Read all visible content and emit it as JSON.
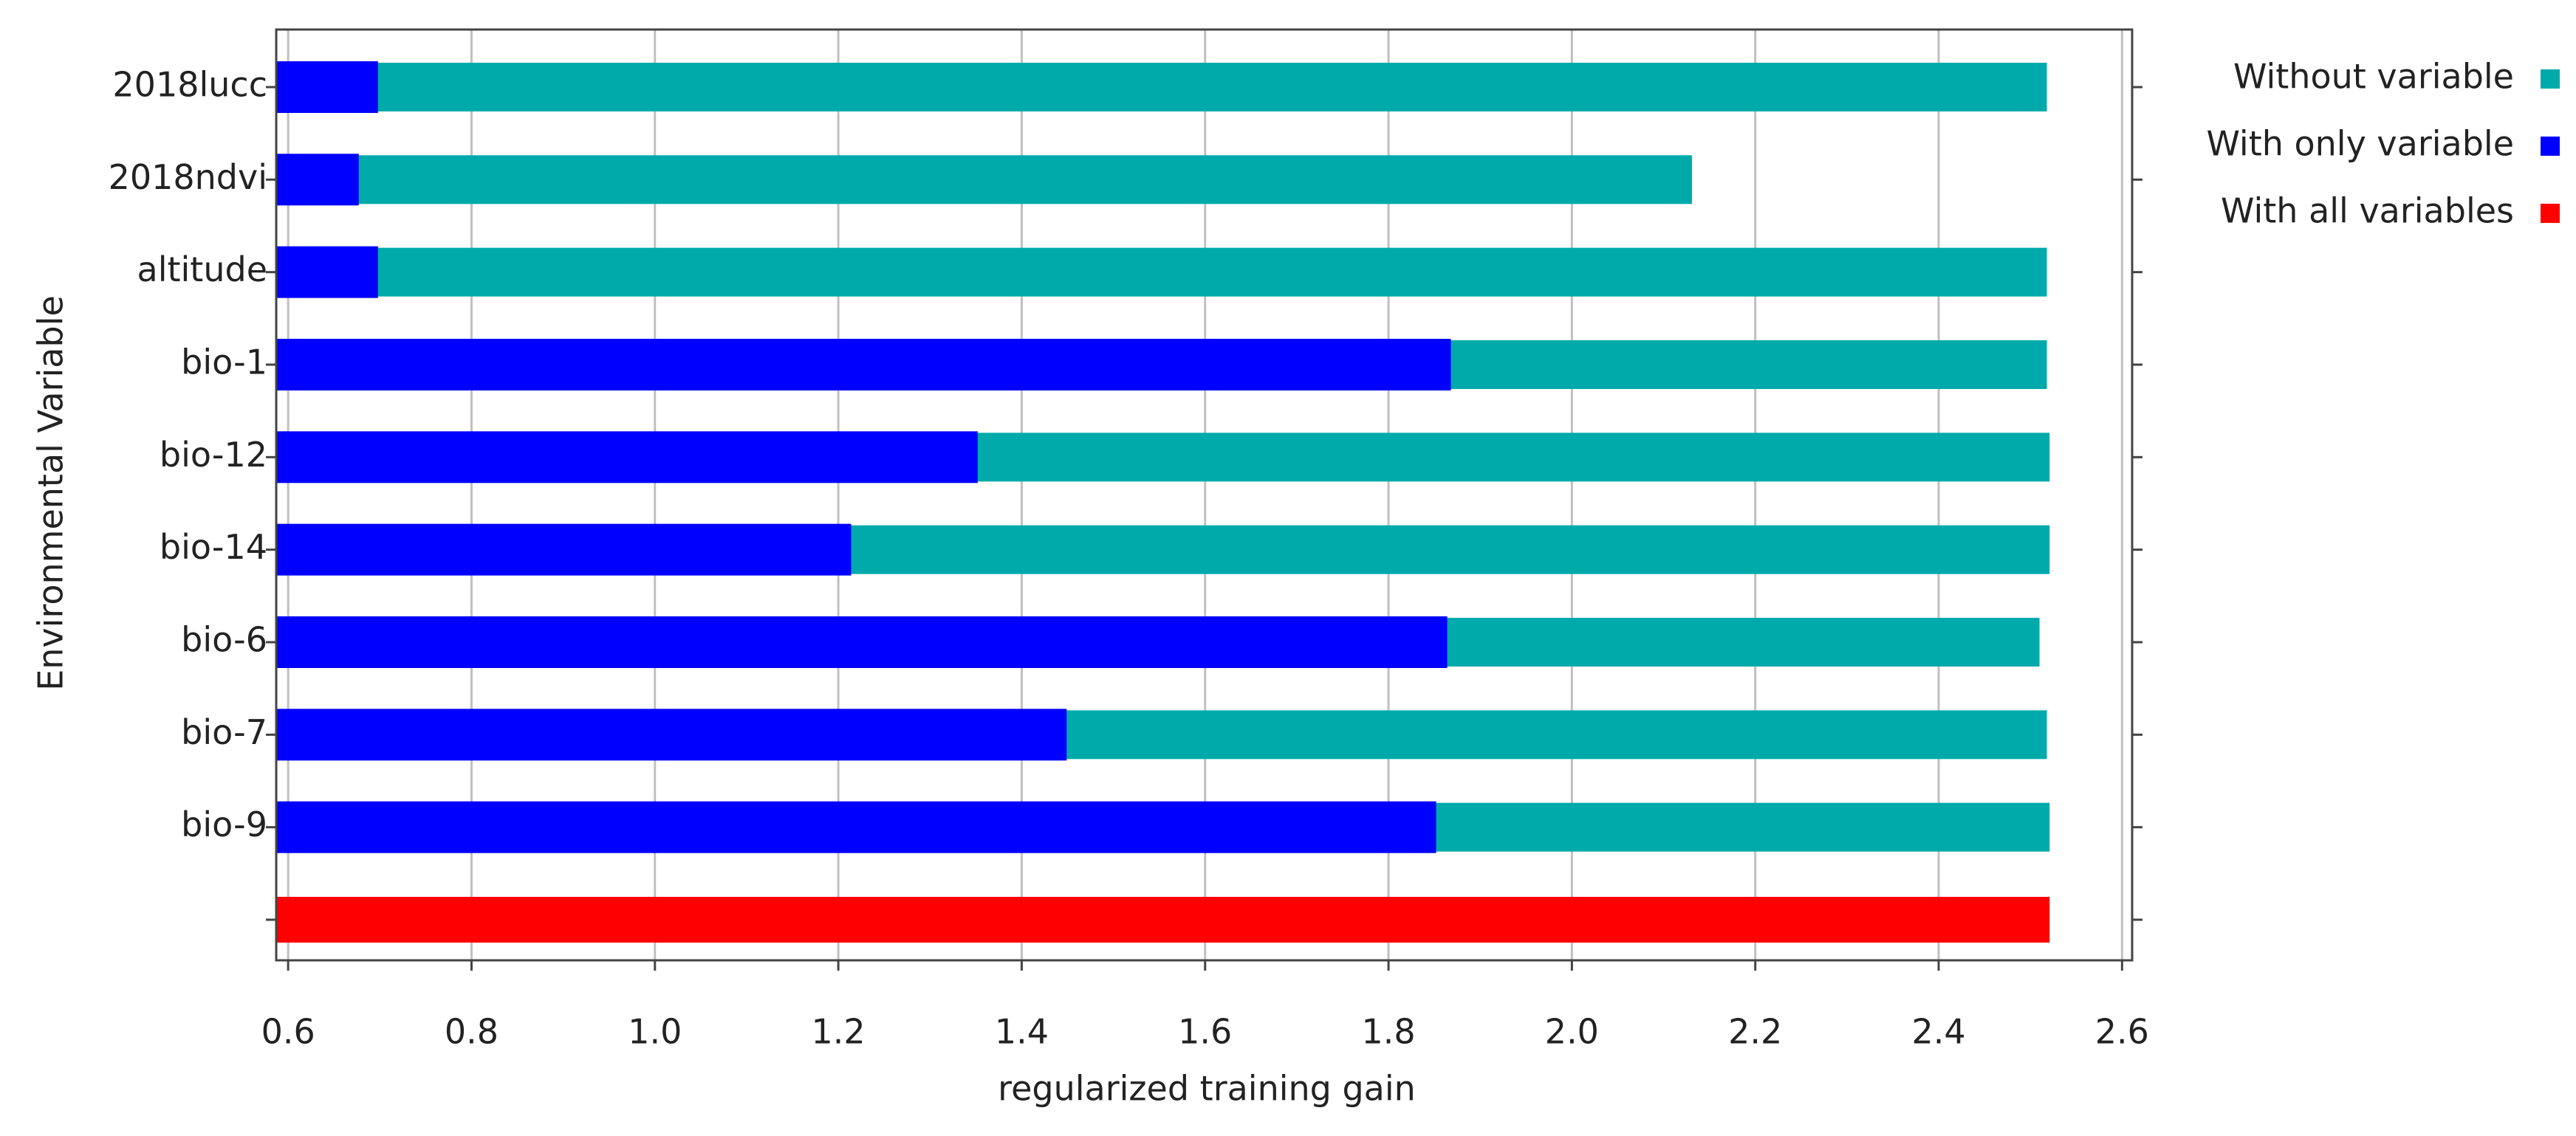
{
  "chart_data": {
    "type": "hbar",
    "orientation": "horizontal",
    "xlabel": "regularized training gain",
    "ylabel": "Environmental Variable",
    "categories": [
      "2018lucc",
      "2018ndvi",
      "altitude",
      "bio-1",
      "bio-12",
      "bio-14",
      "bio-6",
      "bio-7",
      "bio-9",
      null
    ],
    "series": [
      {
        "name": "Without variable",
        "color": "#00aaaa",
        "values": [
          2.518,
          2.131,
          2.518,
          2.518,
          2.521,
          2.521,
          2.51,
          2.518,
          2.521,
          null
        ]
      },
      {
        "name": "With only variable",
        "color": "#0000ff",
        "values": [
          0.698,
          0.677,
          0.698,
          1.868,
          1.352,
          1.214,
          1.864,
          1.449,
          1.852,
          null
        ]
      },
      {
        "name": "With all variables",
        "color": "#ff0000",
        "values": [
          null,
          null,
          null,
          null,
          null,
          null,
          null,
          null,
          null,
          2.521
        ]
      }
    ],
    "xlim": [
      0.587,
      2.611
    ],
    "xticks": [
      0.6,
      0.8,
      {
        "value": 1,
        "label": "1.0"
      },
      1.2,
      1.4,
      1.6,
      1.8,
      {
        "value": 2,
        "label": "2.0"
      },
      2.2,
      2.4,
      2.6
    ],
    "grid": true,
    "legend": "outside-right"
  }
}
